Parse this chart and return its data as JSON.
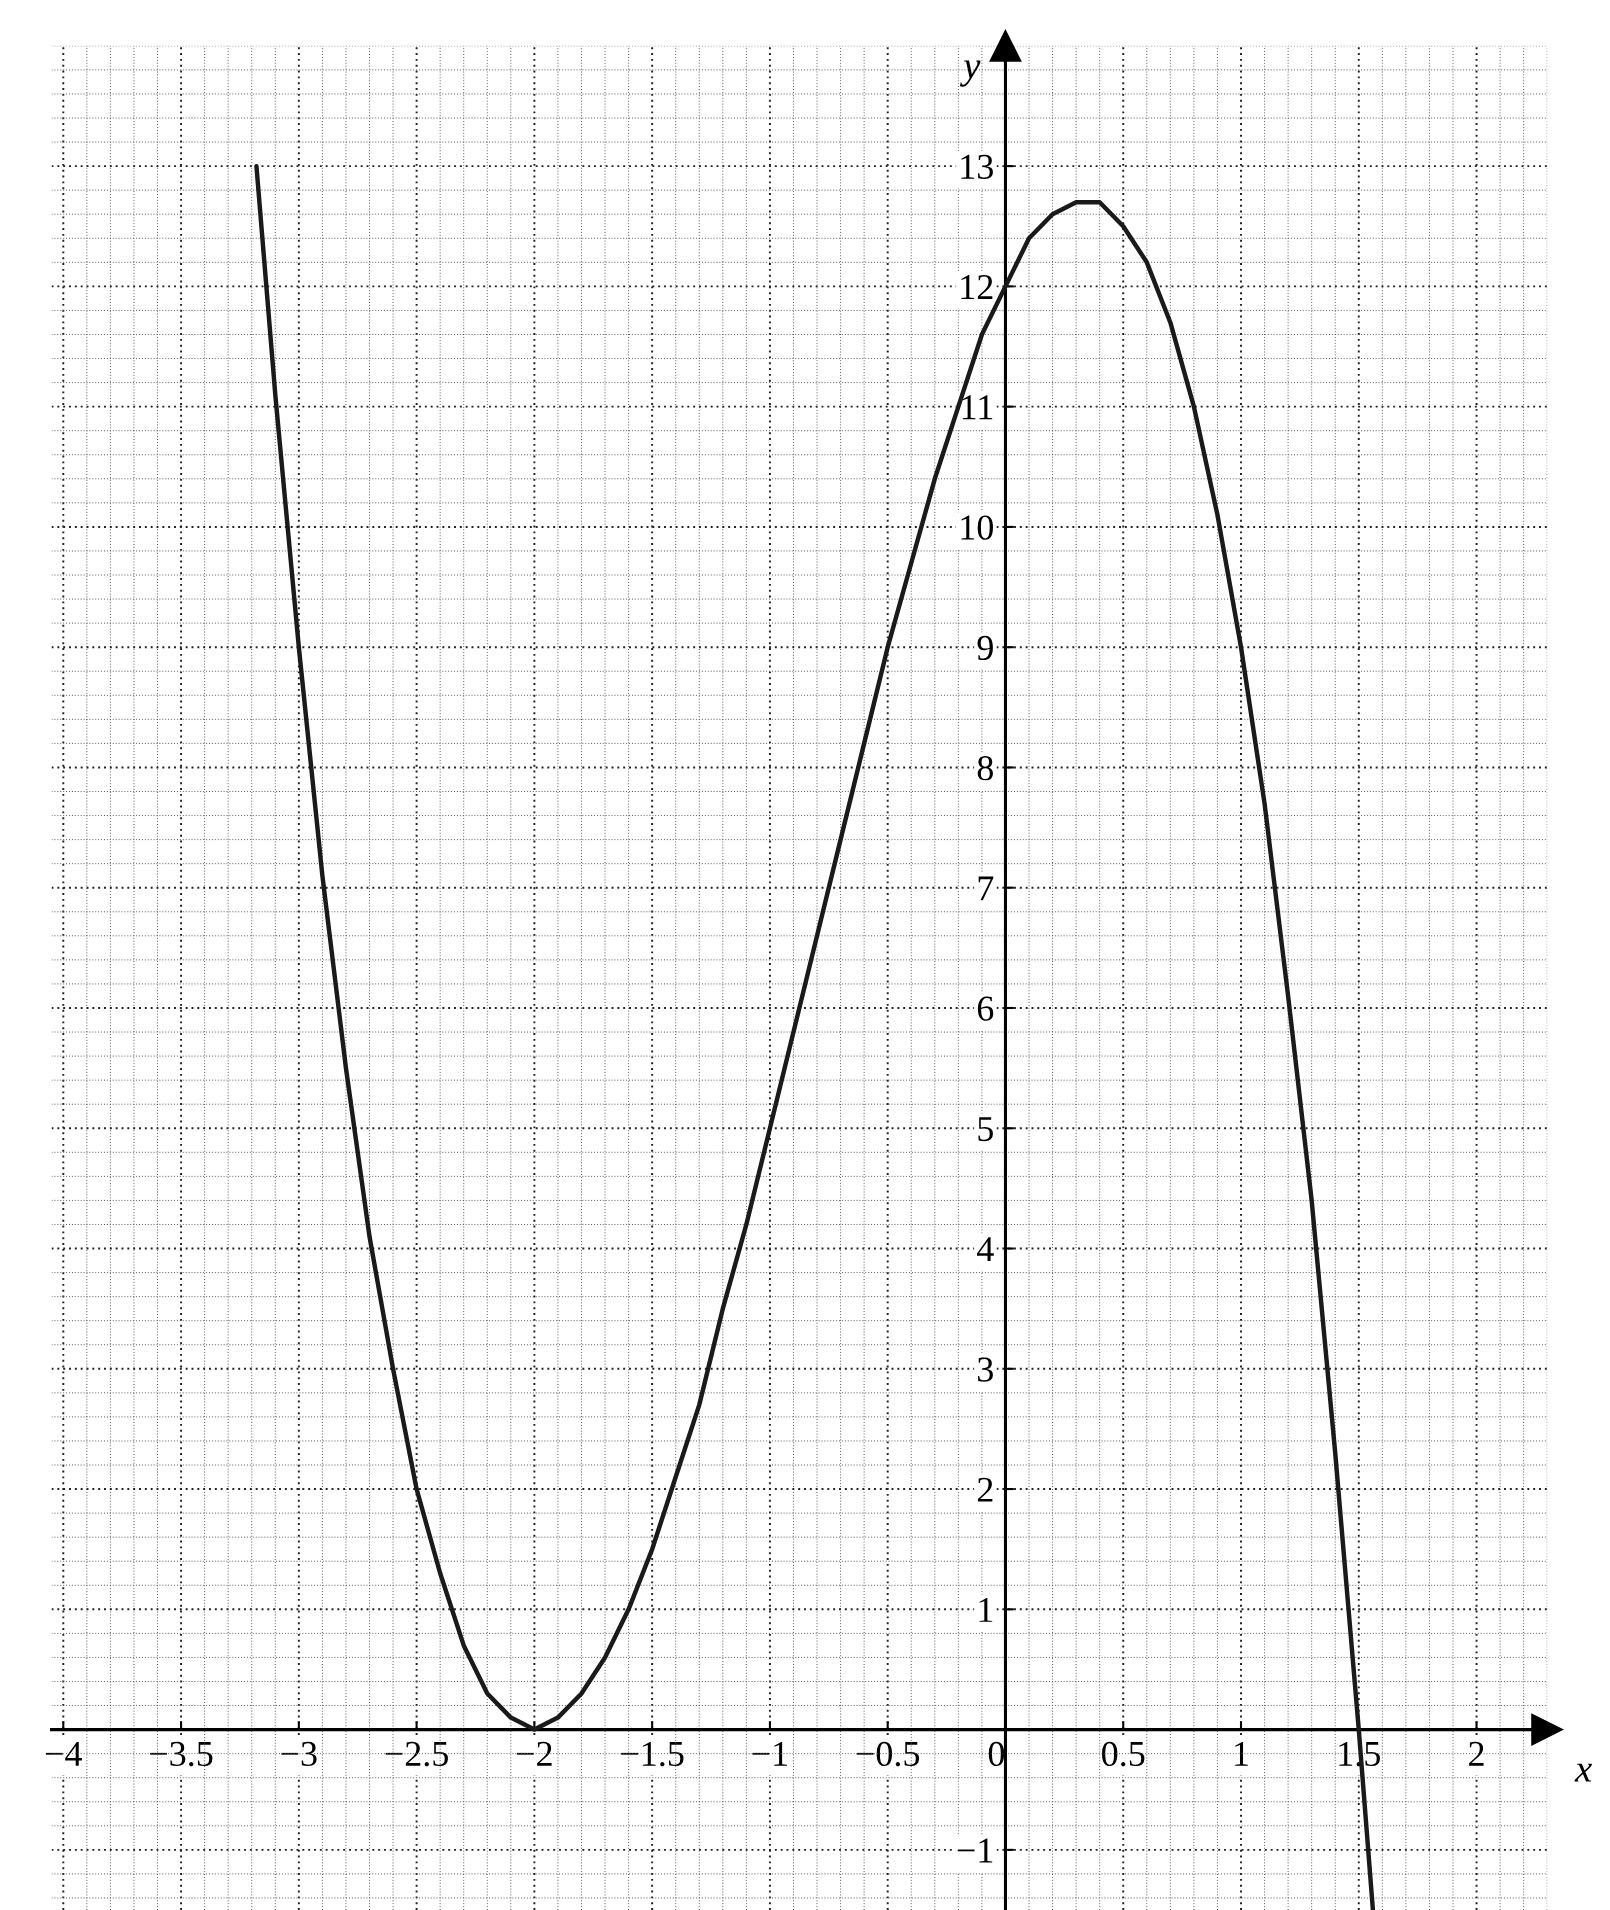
{
  "chart_data": {
    "type": "line",
    "xlabel": "x",
    "ylabel": "y",
    "series": [
      {
        "color": "#1a1a1a",
        "x": [
          -3.18,
          -3.1,
          -3.0,
          -2.9,
          -2.8,
          -2.7,
          -2.6,
          -2.5,
          -2.4,
          -2.3,
          -2.2,
          -2.1,
          -2.0,
          -1.9,
          -1.8,
          -1.7,
          -1.6,
          -1.5,
          -1.4,
          -1.3,
          -1.2,
          -1.1,
          -1.0,
          -0.9,
          -0.8,
          -0.7,
          -0.6,
          -0.5,
          -0.4,
          -0.3,
          -0.2,
          -0.1,
          0,
          0.1,
          0.2,
          0.3,
          0.33,
          0.4,
          0.5,
          0.6,
          0.7,
          0.8,
          0.9,
          1.0,
          1.1,
          1.2,
          1.3,
          1.4,
          1.5,
          1.56
        ],
        "values": [
          13.0,
          11.1,
          9.0,
          7.1,
          5.5,
          4.1,
          3.0,
          2.0,
          1.3,
          0.7,
          0.3,
          0.1,
          0,
          0.1,
          0.3,
          0.6,
          1.0,
          1.5,
          2.1,
          2.7,
          3.5,
          4.2,
          5.0,
          5.8,
          6.6,
          7.4,
          8.2,
          9.0,
          9.7,
          10.4,
          11.0,
          11.6,
          12.0,
          12.4,
          12.6,
          12.7,
          12.7,
          12.7,
          12.5,
          12.2,
          11.7,
          11.0,
          10.1,
          9.0,
          7.7,
          6.1,
          4.4,
          2.3,
          0,
          -1.5
        ]
      }
    ],
    "xlim": [
      -4.05,
      2.3
    ],
    "ylim": [
      -1.5,
      14
    ],
    "xticks": [
      {
        "value": -4,
        "label": "−4"
      },
      {
        "value": -3.5,
        "label": "−3.5"
      },
      {
        "value": -3,
        "label": "−3"
      },
      {
        "value": -2.5,
        "label": "−2.5"
      },
      {
        "value": -2,
        "label": "−2"
      },
      {
        "value": -1.5,
        "label": "−1.5"
      },
      {
        "value": -1,
        "label": "−1"
      },
      {
        "value": -0.5,
        "label": "−0.5"
      },
      0,
      0.5,
      1,
      1.5,
      2
    ],
    "yticks": [
      {
        "value": -1,
        "label": "−1"
      },
      {
        "value": 0,
        "label": null
      },
      1,
      2,
      3,
      4,
      5,
      6,
      7,
      8,
      9,
      10,
      11,
      12,
      13
    ],
    "grid": true,
    "marker": "none",
    "line_style": "solid"
  }
}
